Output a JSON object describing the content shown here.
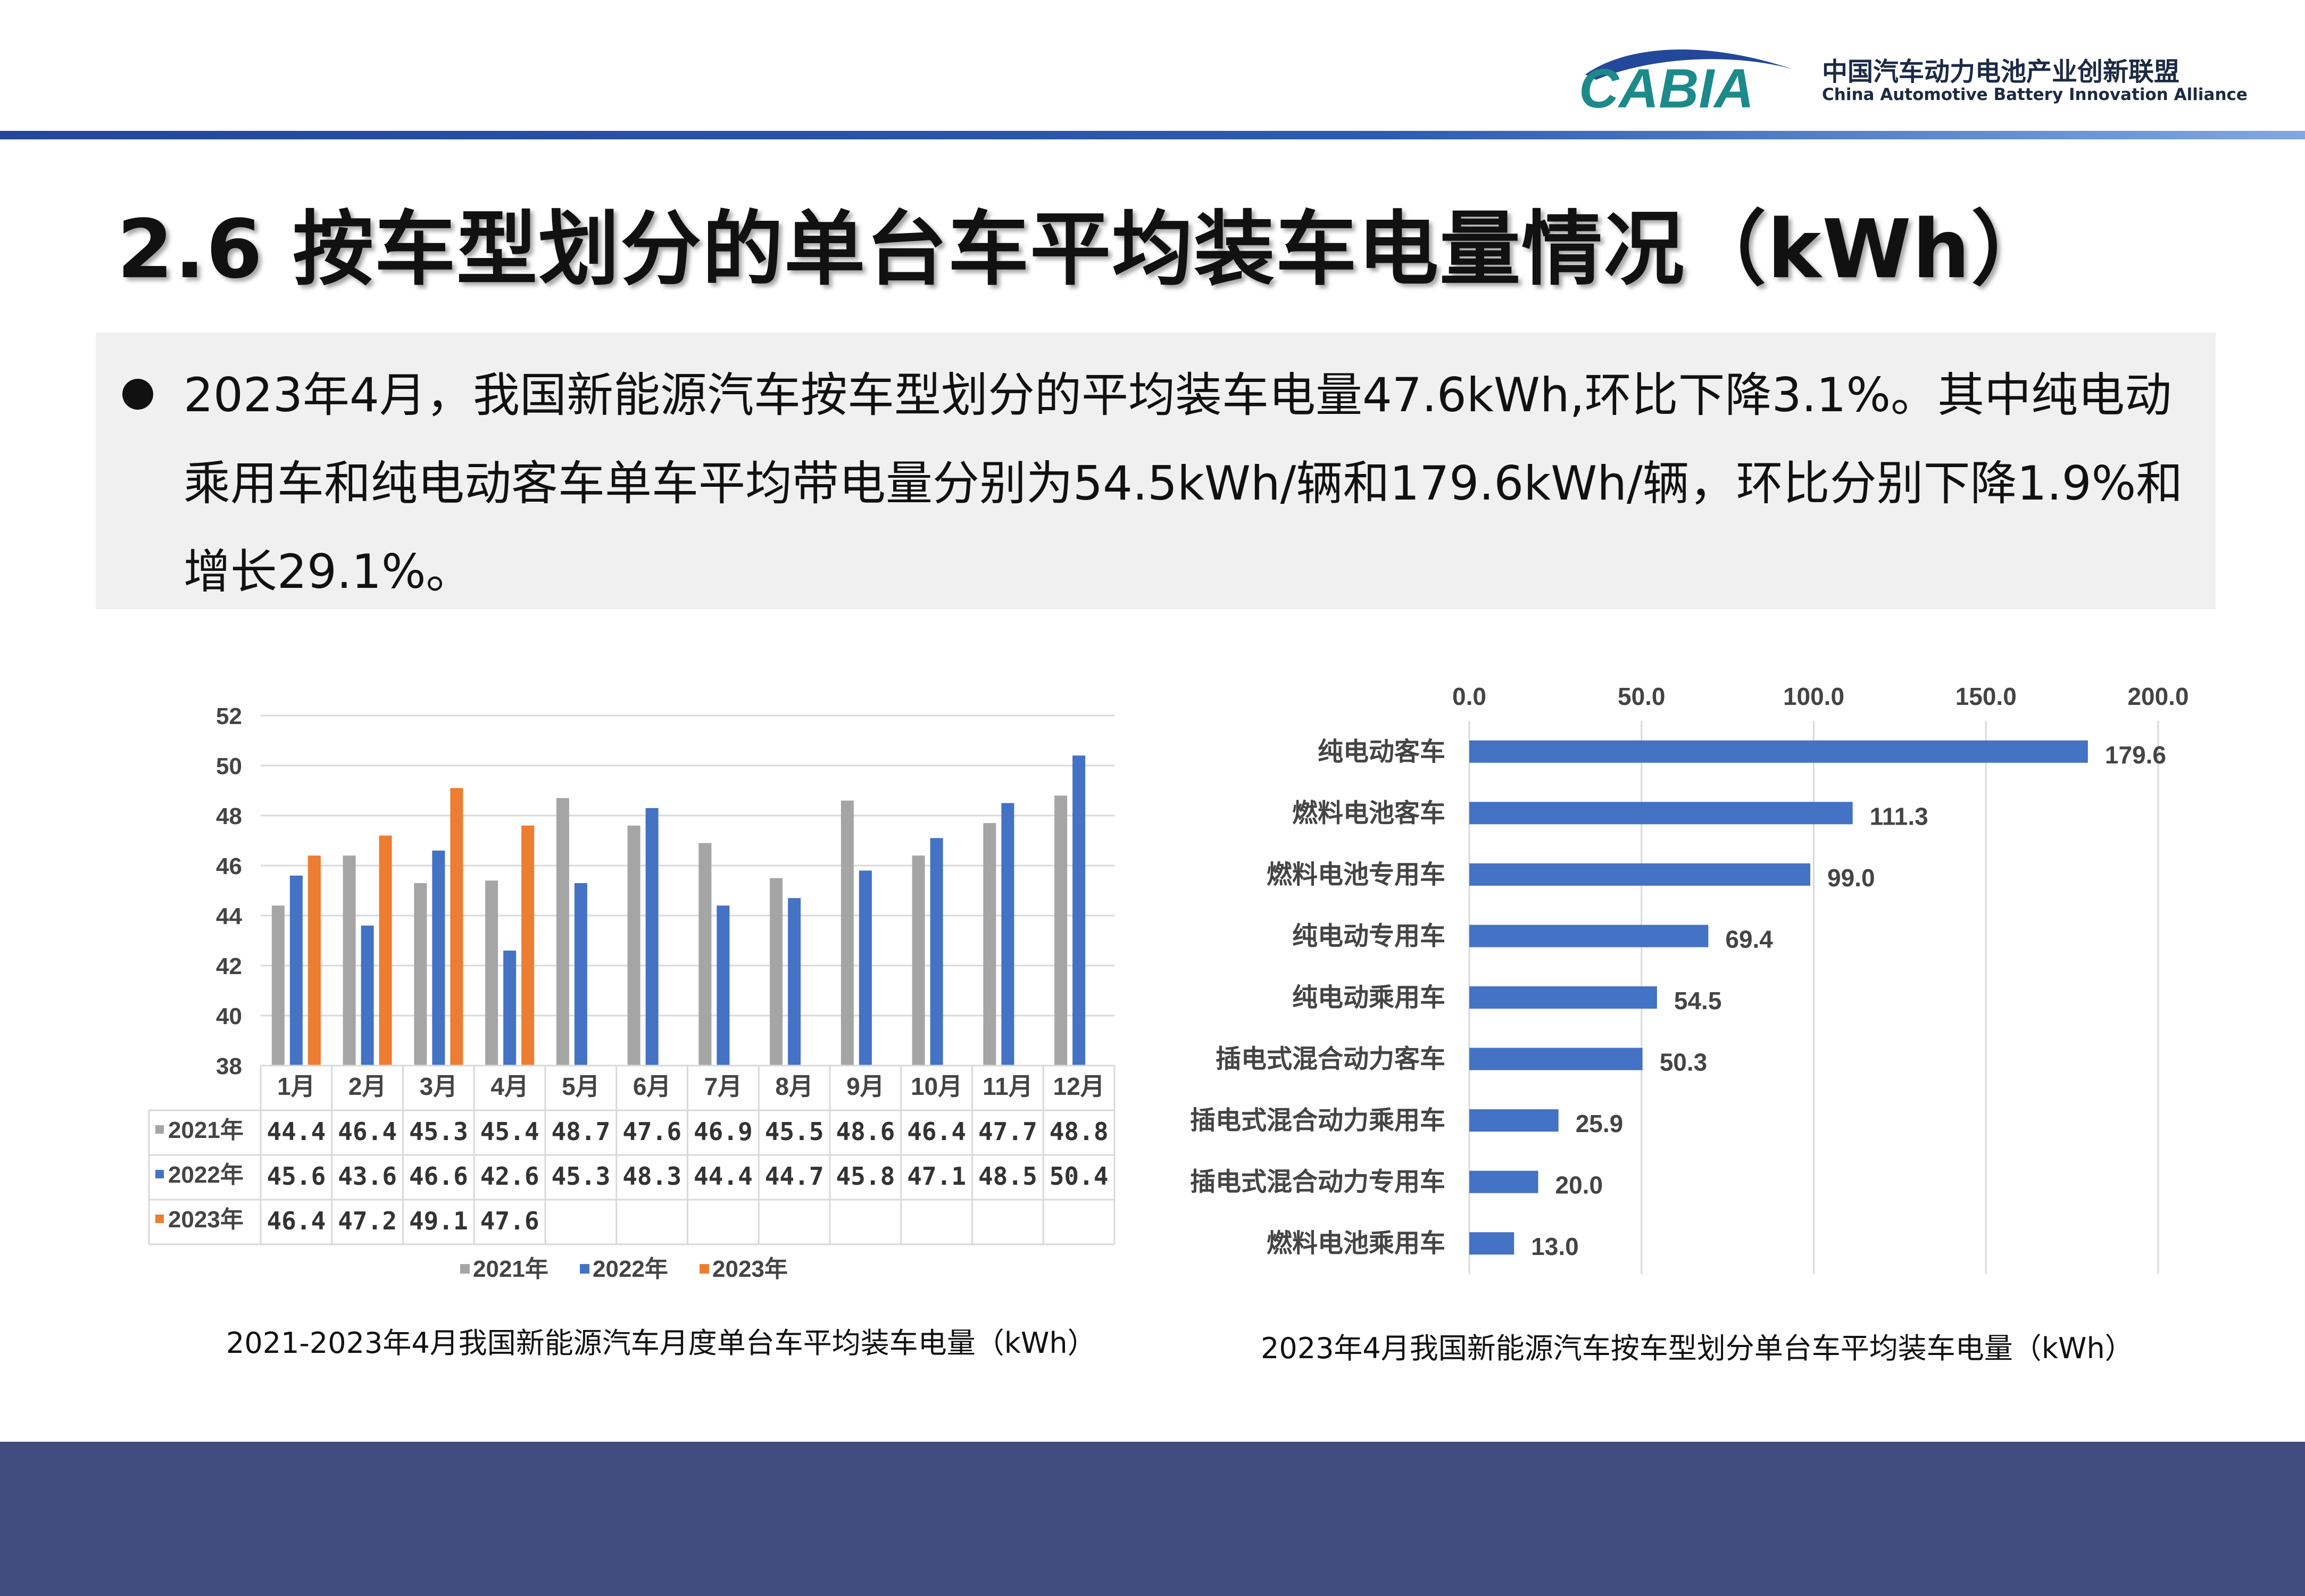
{
  "header": {
    "logo_text": "CABIA",
    "org_name_cn": "中国汽车动力电池产业创新联盟",
    "org_name_en": "China Automotive Battery Innovation Alliance",
    "accent_color": "#2b55a8"
  },
  "page_title": "2.6 按车型划分的单台车平均装车电量情况（kWh）",
  "summary": "2023年4月，我国新能源汽车按车型划分的平均装车电量47.6kWh,环比下降3.1%。其中纯电动乘用车和纯电动客车单车平均带电量分别为54.5kWh/辆和179.6kWh/辆，环比分别下降1.9%和增长29.1%。",
  "captions": {
    "chart1": "2021-2023年4月我国新能源汽车月度单台车平均装车电量（kWh）",
    "chart2": "2023年4月我国新能源汽车按车型划分单台车平均装车电量（kWh）"
  },
  "chart_data": [
    {
      "type": "bar",
      "title": "",
      "categories": [
        "1月",
        "2月",
        "3月",
        "4月",
        "5月",
        "6月",
        "7月",
        "8月",
        "9月",
        "10月",
        "11月",
        "12月"
      ],
      "series": [
        {
          "name": "2021年",
          "color": "#a5a5a5",
          "values": [
            44.4,
            46.4,
            45.3,
            45.4,
            48.7,
            47.6,
            46.9,
            45.5,
            48.6,
            46.4,
            47.7,
            48.8
          ]
        },
        {
          "name": "2022年",
          "color": "#4472c4",
          "values": [
            45.6,
            43.6,
            46.6,
            42.6,
            45.3,
            48.3,
            44.4,
            44.7,
            45.8,
            47.1,
            48.5,
            50.4
          ]
        },
        {
          "name": "2023年",
          "color": "#ed7d31",
          "values": [
            46.4,
            47.2,
            49.1,
            47.6,
            null,
            null,
            null,
            null,
            null,
            null,
            null,
            null
          ]
        }
      ],
      "table_values": {
        "2021年": [
          "44.4",
          "46.4",
          "45.3",
          "45.4",
          "48.7",
          "47.6",
          "46.9",
          "45.5",
          "48.6",
          "46.4",
          "47.7",
          "48.8"
        ],
        "2022年": [
          "45.6",
          "43.6",
          "46.6",
          "42.6",
          "45.3",
          "48.3",
          "44.4",
          "44.7",
          "45.8",
          "47.1",
          "48.5",
          "50.4"
        ],
        "2023年": [
          "46.4",
          "47.2",
          "49.1",
          "47.6",
          "",
          "",
          "",
          "",
          "",
          "",
          "",
          ""
        ]
      },
      "ylim": [
        38,
        52
      ],
      "yticks": [
        38,
        40,
        42,
        44,
        46,
        48,
        50,
        52
      ],
      "ytick_labels": [
        "38",
        "40",
        "42",
        "44",
        "46",
        "48",
        "50",
        "52"
      ],
      "grid": true,
      "legend": "bottom"
    },
    {
      "type": "bar",
      "orientation": "horizontal",
      "title": "",
      "categories": [
        "纯电动客车",
        "燃料电池客车",
        "燃料电池专用车",
        "纯电动专用车",
        "纯电动乘用车",
        "插电式混合动力客车",
        "插电式混合动力乘用车",
        "插电式混合动力专用车",
        "燃料电池乘用车"
      ],
      "values": [
        179.6,
        111.3,
        99.0,
        69.4,
        54.5,
        50.3,
        25.9,
        20.0,
        13.0
      ],
      "value_labels": [
        "179.6",
        "111.3",
        "99.0",
        "69.4",
        "54.5",
        "50.3",
        "25.9",
        "20.0",
        "13.0"
      ],
      "color": "#4472c4",
      "xlim": [
        0,
        200
      ],
      "xticks": [
        0,
        50,
        100,
        150,
        200
      ],
      "xtick_labels": [
        "0.0",
        "50.0",
        "100.0",
        "150.0",
        "200.0"
      ],
      "xaxis_position": "top",
      "grid": true
    }
  ]
}
